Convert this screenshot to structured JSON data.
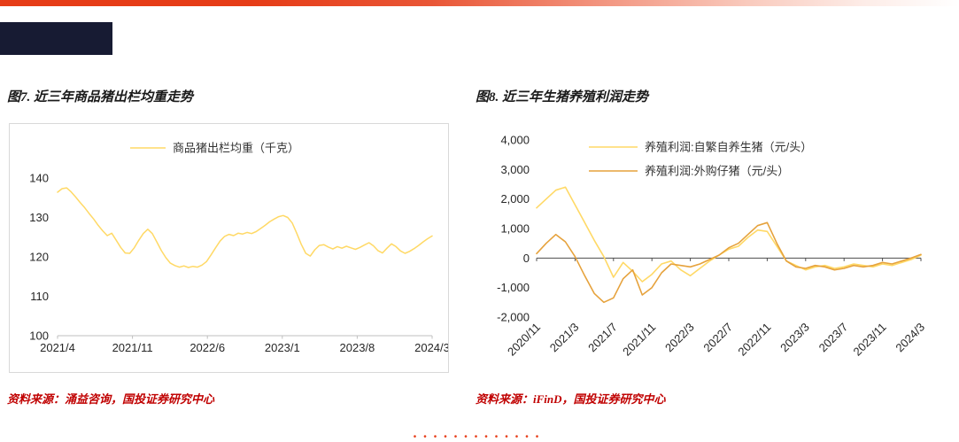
{
  "page": {
    "top_bar_color": "#e63c17",
    "logo_block_color": "#171b33",
    "source_text_color": "#c00000"
  },
  "figure7": {
    "title": "图7. 近三年商品猪出栏均重走势",
    "source": "资料来源：涌益咨询，国投证券研究中心"
  },
  "figure8": {
    "title": "图8. 近三年生猪养殖利润走势",
    "source": "资料来源：iFinD，国投证券研究中心"
  },
  "footer": {
    "marks": "•••••••••••••"
  },
  "chart_data": [
    {
      "type": "line",
      "title": "图7. 近三年商品猪出栏均重走势",
      "xlabel": "",
      "ylabel": "",
      "legend_position": "top-center",
      "grid": false,
      "ylim": [
        100,
        140
      ],
      "yticks": [
        100,
        110,
        120,
        130,
        140
      ],
      "xticks": [
        "2021/4",
        "2021/11",
        "2022/6",
        "2023/1",
        "2023/8",
        "2024/3"
      ],
      "series": [
        {
          "name": "商品猪出栏均重（千克）",
          "color": "#ffd966",
          "values": [
            136.4,
            137.3,
            137.5,
            136.5,
            135.2,
            133.8,
            132.5,
            131.0,
            129.6,
            128.0,
            126.6,
            125.4,
            126.0,
            124.2,
            122.4,
            121.0,
            120.9,
            122.3,
            124.2,
            125.9,
            127.0,
            125.9,
            123.8,
            121.6,
            119.8,
            118.4,
            117.8,
            117.4,
            117.7,
            117.3,
            117.6,
            117.4,
            117.9,
            118.8,
            120.5,
            122.3,
            124.0,
            125.2,
            125.7,
            125.4,
            126.0,
            125.8,
            126.2,
            125.9,
            126.4,
            127.2,
            128.0,
            128.9,
            129.6,
            130.2,
            130.5,
            130.0,
            128.6,
            126.0,
            123.2,
            120.9,
            120.2,
            121.8,
            122.9,
            123.1,
            122.5,
            122.0,
            122.6,
            122.2,
            122.7,
            122.3,
            121.9,
            122.4,
            123.0,
            123.6,
            122.8,
            121.6,
            121.0,
            122.2,
            123.3,
            122.6,
            121.5,
            120.9,
            121.4,
            122.1,
            122.9,
            123.8,
            124.6,
            125.3
          ]
        }
      ]
    },
    {
      "type": "line",
      "title": "图8. 近三年生猪养殖利润走势",
      "xlabel": "",
      "ylabel": "",
      "legend_position": "top-left-stacked",
      "grid": false,
      "ylim": [
        -2000,
        4000
      ],
      "yticks": [
        -2000,
        -1000,
        0,
        1000,
        2000,
        3000,
        4000
      ],
      "ytick_labels": [
        "-2,000",
        "-1,000",
        "0",
        "1,000",
        "2,000",
        "3,000",
        "4,000"
      ],
      "xticks": [
        "2020/11",
        "2021/3",
        "2021/7",
        "2021/11",
        "2022/3",
        "2022/7",
        "2022/11",
        "2023/3",
        "2023/7",
        "2023/11",
        "2024/3"
      ],
      "xtick_rotation": -45,
      "series": [
        {
          "name": "养殖利润:自繁自养生猪（元/头）",
          "color": "#ffd966",
          "values": [
            1700,
            2000,
            2300,
            2400,
            1800,
            1200,
            600,
            50,
            -650,
            -150,
            -450,
            -800,
            -550,
            -200,
            -100,
            -400,
            -600,
            -350,
            -100,
            100,
            300,
            400,
            700,
            950,
            900,
            400,
            -100,
            -250,
            -400,
            -300,
            -250,
            -350,
            -300,
            -200,
            -250,
            -300,
            -200,
            -250,
            -150,
            -50,
            100
          ]
        },
        {
          "name": "养殖利润:外购仔猪（元/头）",
          "color": "#e6a23c",
          "values": [
            150,
            500,
            800,
            550,
            50,
            -600,
            -1200,
            -1500,
            -1350,
            -700,
            -400,
            -1250,
            -1000,
            -500,
            -200,
            -250,
            -300,
            -200,
            -50,
            100,
            350,
            500,
            800,
            1100,
            1200,
            500,
            -100,
            -300,
            -350,
            -250,
            -300,
            -400,
            -350,
            -250,
            -300,
            -250,
            -150,
            -200,
            -100,
            0,
            120
          ]
        }
      ]
    }
  ]
}
